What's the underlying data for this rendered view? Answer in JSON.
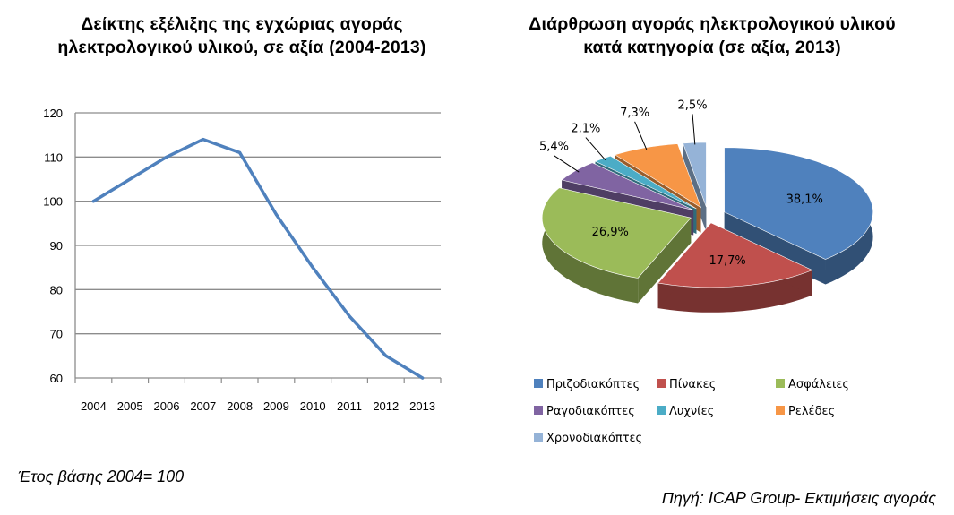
{
  "left_title": [
    "Δείκτης εξέλιξης της εγχώριας αγοράς",
    "ηλεκτρολογικού υλικού, σε αξία (2004-2013)"
  ],
  "right_title": [
    "Διάρθρωση αγοράς ηλεκτρολογικού υλικού",
    "κατά κατηγορία (σε αξία, 2013)"
  ],
  "base_note": "Έτος βάσης 2004= 100",
  "source_note": "Πηγή: ICAP Group- Εκτιμήσεις αγοράς",
  "chart_data": [
    {
      "type": "line",
      "categories": [
        "2004",
        "2005",
        "2006",
        "2007",
        "2008",
        "2009",
        "2010",
        "2011",
        "2012",
        "2013"
      ],
      "series": [
        {
          "name": "",
          "values": [
            100,
            105,
            110,
            114,
            111,
            97,
            85,
            74,
            65,
            60
          ],
          "color": "#4F81BD"
        }
      ],
      "ylim": [
        60,
        120
      ],
      "yticks": [
        60,
        70,
        80,
        90,
        100,
        110,
        120
      ],
      "grid": true
    },
    {
      "type": "pie",
      "categories": [
        "Πριζοδιακόπτες",
        "Πίνακες",
        "Ασφάλειες",
        "Ραγοδιακόπτες",
        "Λυχνίες",
        "Ρελέδες",
        "Χρονοδιακόπτες"
      ],
      "values": [
        38.1,
        17.7,
        26.9,
        5.4,
        2.1,
        7.3,
        2.5
      ],
      "labels": [
        "38,1%",
        "17,7%",
        "26,9%",
        "5,4%",
        "2,1%",
        "7,3%",
        "2,5%"
      ],
      "colors": [
        "#4F81BD",
        "#C0504D",
        "#9BBB59",
        "#8064A2",
        "#4BACC6",
        "#F79646",
        "#95B3D7"
      ],
      "legend": "bottom"
    }
  ]
}
